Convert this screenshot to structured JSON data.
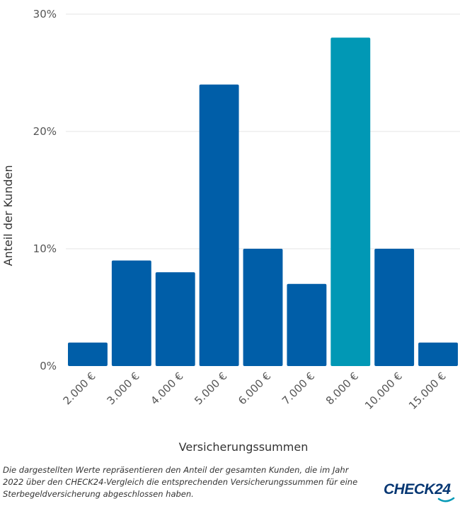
{
  "chart_data": {
    "type": "bar",
    "categories": [
      "2.000 €",
      "3.000 €",
      "4.000 €",
      "5.000 €",
      "6.000 €",
      "7.000 €",
      "8.000 €",
      "10.000 €",
      "15.000 €"
    ],
    "values": [
      2,
      9,
      8,
      24,
      10,
      7,
      28,
      10,
      2
    ],
    "highlight_index": 6,
    "colors": {
      "default": "#005ea8",
      "highlight": "#0198b5",
      "grid": "#e6e6e6"
    },
    "ylim": [
      0,
      30
    ],
    "yticks": [
      0,
      10,
      20,
      30
    ],
    "ytick_labels": [
      "0%",
      "10%",
      "20%",
      "30%"
    ],
    "xlabel": "Versicherungssummen",
    "ylabel": "Anteil der Kunden",
    "grid": true,
    "legend": "none"
  },
  "footnote": "Die dargestellten Werte repräsentieren den Anteil der gesamten Kunden, die im Jahr 2022 über den CHECK24-Vergleich die entsprechenden Versicherungssummen für eine Sterbegeldversicherung abgeschlossen haben.",
  "logo": {
    "text": "CHECK24",
    "icon": "check24-logo"
  }
}
